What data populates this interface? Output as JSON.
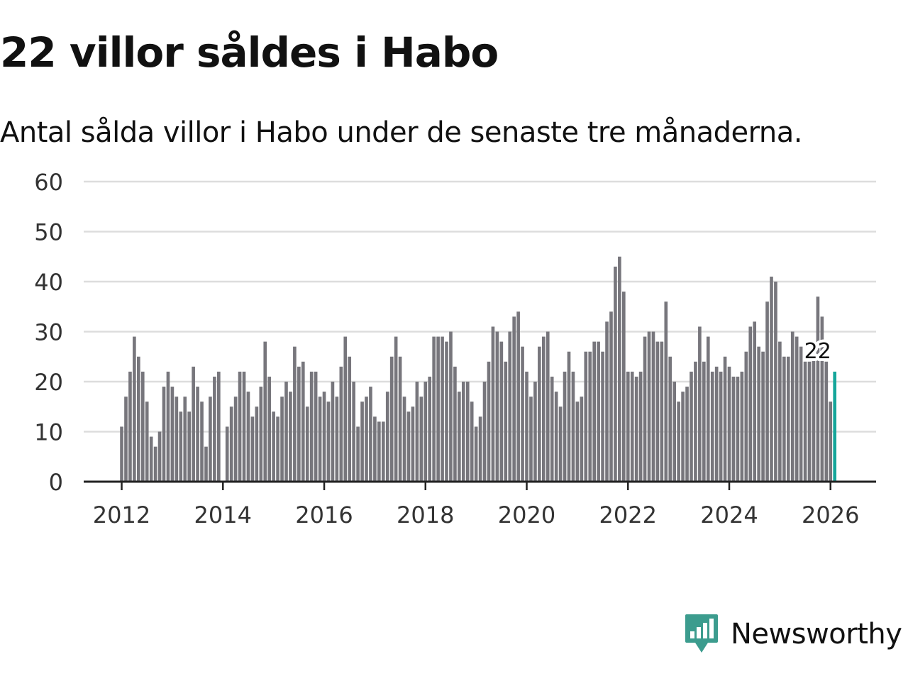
{
  "header": {
    "title": "22 villor såldes i Habo",
    "subtitle": "Antal sålda villor i Habo under de senaste tre månaderna."
  },
  "colors": {
    "bar": "#77767c",
    "highlight": "#15a69a",
    "grid": "#dddddd",
    "axis": "#222222",
    "brand": "#3c9c8e"
  },
  "chart_data": {
    "type": "bar",
    "title": "22 villor såldes i Habo",
    "subtitle": "Antal sålda villor i Habo under de senaste tre månaderna.",
    "xlabel": "",
    "ylabel": "",
    "ylim": [
      0,
      60
    ],
    "yticks": [
      0,
      10,
      20,
      30,
      40,
      50,
      60
    ],
    "xlim": [
      2011.25,
      2026.9
    ],
    "xticks": [
      2012,
      2014,
      2016,
      2018,
      2020,
      2022,
      2024,
      2026
    ],
    "xtick_labels": [
      "2012",
      "2014",
      "2016",
      "2018",
      "2020",
      "2022",
      "2024",
      "2026"
    ],
    "grid": true,
    "start": "2012-01",
    "frequency": "monthly",
    "values": [
      11,
      17,
      22,
      29,
      25,
      22,
      16,
      9,
      7,
      10,
      19,
      22,
      19,
      17,
      14,
      17,
      14,
      23,
      19,
      16,
      7,
      17,
      21,
      22,
      0,
      11,
      15,
      17,
      22,
      22,
      18,
      13,
      15,
      19,
      28,
      21,
      14,
      13,
      17,
      20,
      18,
      27,
      23,
      24,
      15,
      22,
      22,
      17,
      18,
      16,
      20,
      17,
      23,
      29,
      25,
      20,
      11,
      16,
      17,
      19,
      13,
      12,
      12,
      18,
      25,
      29,
      25,
      17,
      14,
      15,
      20,
      17,
      20,
      21,
      29,
      29,
      29,
      28,
      30,
      23,
      18,
      20,
      20,
      16,
      11,
      13,
      20,
      24,
      31,
      30,
      28,
      24,
      30,
      33,
      34,
      27,
      22,
      17,
      20,
      27,
      29,
      30,
      21,
      18,
      15,
      22,
      26,
      22,
      16,
      17,
      26,
      26,
      28,
      28,
      26,
      32,
      34,
      43,
      45,
      38,
      22,
      22,
      21,
      22,
      29,
      30,
      30,
      28,
      28,
      36,
      25,
      20,
      16,
      18,
      19,
      22,
      24,
      31,
      24,
      29,
      22,
      23,
      22,
      25,
      23,
      21,
      21,
      22,
      26,
      31,
      32,
      27,
      26,
      36,
      41,
      40,
      28,
      25,
      25,
      30,
      29,
      27,
      24,
      24,
      25,
      37,
      33,
      24,
      16,
      22
    ],
    "highlight_index": 169,
    "annotation": {
      "text": "22",
      "value": 22
    }
  },
  "footer": {
    "brand": "Newsworthy",
    "logo_icon": "newsworthy-logo-icon"
  }
}
